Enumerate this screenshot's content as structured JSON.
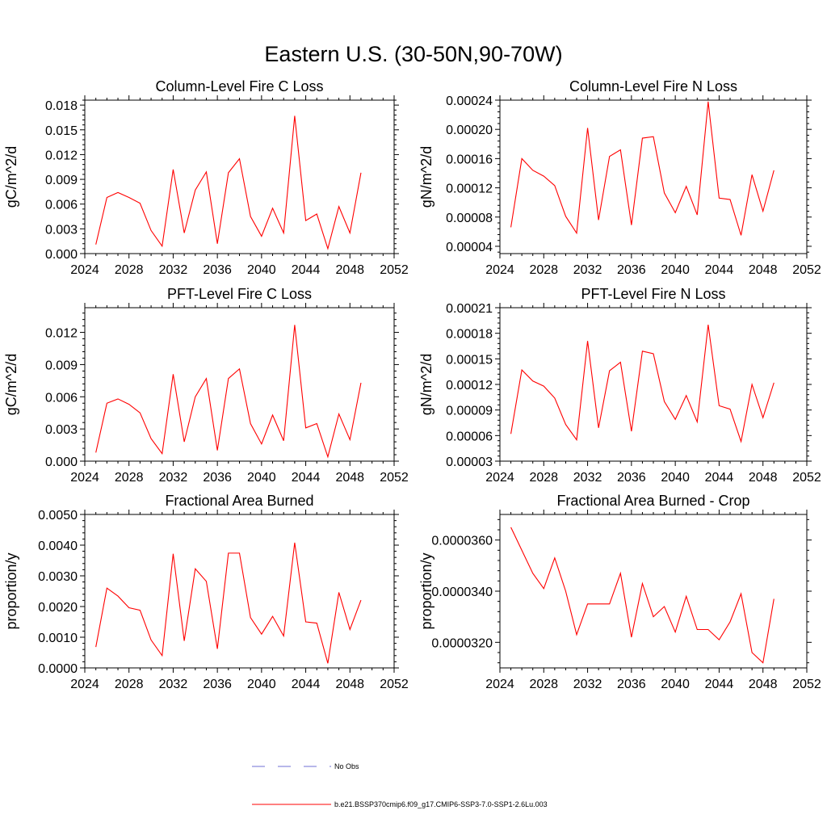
{
  "figure_title": "Eastern U.S. (30-50N,90-70W)",
  "chart_data": [
    {
      "type": "line",
      "title": "Column-Level Fire C Loss",
      "ylabel": "gC/m^2/d",
      "xlabel": "",
      "xlim": [
        2024,
        2052
      ],
      "ylim": [
        0,
        0.0186
      ],
      "xticks": [
        2024,
        2028,
        2032,
        2036,
        2040,
        2044,
        2048,
        2052
      ],
      "yticks": [
        0,
        0.003,
        0.006,
        0.009,
        0.012,
        0.015,
        0.018
      ],
      "ytick_labels": [
        "0.000",
        "0.003",
        "0.006",
        "0.009",
        "0.012",
        "0.015",
        "0.018"
      ],
      "x": [
        2025,
        2026,
        2027,
        2028,
        2029,
        2030,
        2031,
        2032,
        2033,
        2034,
        2035,
        2036,
        2037,
        2038,
        2039,
        2040,
        2041,
        2042,
        2043,
        2044,
        2045,
        2046,
        2047,
        2048,
        2049
      ],
      "series": [
        {
          "color": "#ff0000",
          "values": [
            0.0011,
            0.0068,
            0.0074,
            0.0068,
            0.0061,
            0.0028,
            0.0009,
            0.0102,
            0.0025,
            0.0077,
            0.0099,
            0.0012,
            0.0098,
            0.0115,
            0.0045,
            0.0021,
            0.0055,
            0.0025,
            0.0167,
            0.004,
            0.0048,
            0.0006,
            0.0057,
            0.0025,
            0.0098
          ]
        }
      ]
    },
    {
      "type": "line",
      "title": "Column-Level Fire N Loss",
      "ylabel": "gN/m^2/d",
      "xlabel": "",
      "xlim": [
        2024,
        2052
      ],
      "ylim": [
        3e-05,
        0.00024
      ],
      "xticks": [
        2024,
        2028,
        2032,
        2036,
        2040,
        2044,
        2048,
        2052
      ],
      "yticks": [
        4e-05,
        8e-05,
        0.00012,
        0.00016,
        0.0002,
        0.00024
      ],
      "ytick_labels": [
        "0.00004",
        "0.00008",
        "0.00012",
        "0.00016",
        "0.00020",
        "0.00024"
      ],
      "x": [
        2025,
        2026,
        2027,
        2028,
        2029,
        2030,
        2031,
        2032,
        2033,
        2034,
        2035,
        2036,
        2037,
        2038,
        2039,
        2040,
        2041,
        2042,
        2043,
        2044,
        2045,
        2046,
        2047,
        2048,
        2049
      ],
      "series": [
        {
          "color": "#ff0000",
          "values": [
            6.6e-05,
            0.00016,
            0.000144,
            0.000136,
            0.000123,
            8.1e-05,
            5.8e-05,
            0.000202,
            7.6e-05,
            0.000163,
            0.000172,
            6.9e-05,
            0.000188,
            0.00019,
            0.000113,
            8.6e-05,
            0.000122,
            8.3e-05,
            0.000238,
            0.000106,
            0.000104,
            5.5e-05,
            0.000138,
            8.8e-05,
            0.000144
          ]
        }
      ]
    },
    {
      "type": "line",
      "title": "PFT-Level Fire C Loss",
      "ylabel": "gC/m^2/d",
      "xlabel": "",
      "xlim": [
        2024,
        2052
      ],
      "ylim": [
        0,
        0.0143
      ],
      "xticks": [
        2024,
        2028,
        2032,
        2036,
        2040,
        2044,
        2048,
        2052
      ],
      "yticks": [
        0,
        0.003,
        0.006,
        0.009,
        0.012
      ],
      "ytick_labels": [
        "0.000",
        "0.003",
        "0.006",
        "0.009",
        "0.012"
      ],
      "x": [
        2025,
        2026,
        2027,
        2028,
        2029,
        2030,
        2031,
        2032,
        2033,
        2034,
        2035,
        2036,
        2037,
        2038,
        2039,
        2040,
        2041,
        2042,
        2043,
        2044,
        2045,
        2046,
        2047,
        2048,
        2049
      ],
      "series": [
        {
          "color": "#ff0000",
          "values": [
            0.0008,
            0.0054,
            0.0058,
            0.0053,
            0.0045,
            0.0021,
            0.0007,
            0.0081,
            0.0018,
            0.006,
            0.0077,
            0.001,
            0.0077,
            0.0086,
            0.0035,
            0.0016,
            0.0043,
            0.0019,
            0.0127,
            0.0031,
            0.0035,
            0.0004,
            0.0044,
            0.002,
            0.0073
          ]
        }
      ]
    },
    {
      "type": "line",
      "title": "PFT-Level Fire N Loss",
      "ylabel": "gN/m^2/d",
      "xlabel": "",
      "xlim": [
        2024,
        2052
      ],
      "ylim": [
        3e-05,
        0.00021
      ],
      "xticks": [
        2024,
        2028,
        2032,
        2036,
        2040,
        2044,
        2048,
        2052
      ],
      "yticks": [
        3e-05,
        6e-05,
        9e-05,
        0.00012,
        0.00015,
        0.00018,
        0.00021
      ],
      "ytick_labels": [
        "0.00003",
        "0.00006",
        "0.00009",
        "0.00012",
        "0.00015",
        "0.00018",
        "0.00021"
      ],
      "x": [
        2025,
        2026,
        2027,
        2028,
        2029,
        2030,
        2031,
        2032,
        2033,
        2034,
        2035,
        2036,
        2037,
        2038,
        2039,
        2040,
        2041,
        2042,
        2043,
        2044,
        2045,
        2046,
        2047,
        2048,
        2049
      ],
      "series": [
        {
          "color": "#ff0000",
          "values": [
            6.2e-05,
            0.000137,
            0.000124,
            0.000118,
            0.000104,
            7.3e-05,
            5.5e-05,
            0.000171,
            6.9e-05,
            0.000136,
            0.000146,
            6.5e-05,
            0.000159,
            0.000156,
            0.0001,
            7.9e-05,
            0.000107,
            7.6e-05,
            0.00019,
            9.5e-05,
            9.1e-05,
            5.3e-05,
            0.00012,
            8.1e-05,
            0.000122
          ]
        }
      ]
    },
    {
      "type": "line",
      "title": "Fractional Area Burned",
      "ylabel": "proportion/y",
      "xlabel": "",
      "xlim": [
        2024,
        2052
      ],
      "ylim": [
        0,
        0.005
      ],
      "xticks": [
        2024,
        2028,
        2032,
        2036,
        2040,
        2044,
        2048,
        2052
      ],
      "yticks": [
        0,
        0.001,
        0.002,
        0.003,
        0.004,
        0.005
      ],
      "ytick_labels": [
        "0.0000",
        "0.0010",
        "0.0020",
        "0.0030",
        "0.0040",
        "0.0050"
      ],
      "x": [
        2025,
        2026,
        2027,
        2028,
        2029,
        2030,
        2031,
        2032,
        2033,
        2034,
        2035,
        2036,
        2037,
        2038,
        2039,
        2040,
        2041,
        2042,
        2043,
        2044,
        2045,
        2046,
        2047,
        2048,
        2049
      ],
      "series": [
        {
          "color": "#ff0000",
          "values": [
            0.00068,
            0.0026,
            0.00234,
            0.00196,
            0.00188,
            0.00091,
            0.0004,
            0.00372,
            0.00088,
            0.00323,
            0.00282,
            0.00062,
            0.00374,
            0.00374,
            0.00164,
            0.0011,
            0.00168,
            0.00104,
            0.00408,
            0.0015,
            0.00146,
            0.00015,
            0.00246,
            0.00125,
            0.00221
          ]
        }
      ]
    },
    {
      "type": "line",
      "title": "Fractional Area Burned - Crop",
      "ylabel": "proportion/y",
      "xlabel": "",
      "xlim": [
        2024,
        2052
      ],
      "ylim": [
        3.1e-05,
        3.7e-05
      ],
      "xticks": [
        2024,
        2028,
        2032,
        2036,
        2040,
        2044,
        2048,
        2052
      ],
      "yticks": [
        3.2e-05,
        3.4e-05,
        3.6e-05
      ],
      "ytick_labels": [
        "0.0000320",
        "0.0000340",
        "0.0000360"
      ],
      "x": [
        2025,
        2026,
        2027,
        2028,
        2029,
        2030,
        2031,
        2032,
        2033,
        2034,
        2035,
        2036,
        2037,
        2038,
        2039,
        2040,
        2041,
        2042,
        2043,
        2044,
        2045,
        2046,
        2047,
        2048,
        2049
      ],
      "series": [
        {
          "color": "#ff0000",
          "values": [
            3.65e-05,
            3.56e-05,
            3.47e-05,
            3.41e-05,
            3.53e-05,
            3.4e-05,
            3.23e-05,
            3.35e-05,
            3.35e-05,
            3.35e-05,
            3.47e-05,
            3.22e-05,
            3.43e-05,
            3.3e-05,
            3.34e-05,
            3.24e-05,
            3.38e-05,
            3.25e-05,
            3.25e-05,
            3.21e-05,
            3.28e-05,
            3.39e-05,
            3.16e-05,
            3.12e-05,
            3.37e-05
          ]
        }
      ]
    }
  ],
  "legend": [
    {
      "label": "No Obs",
      "color": "#6f6fd6",
      "style": "dashed"
    },
    {
      "label": "b.e21.BSSP370cmip6.f09_g17.CMIP6-SSP3-7.0-SSP1-2.6Lu.003",
      "color": "#ff0000",
      "style": "solid"
    }
  ]
}
